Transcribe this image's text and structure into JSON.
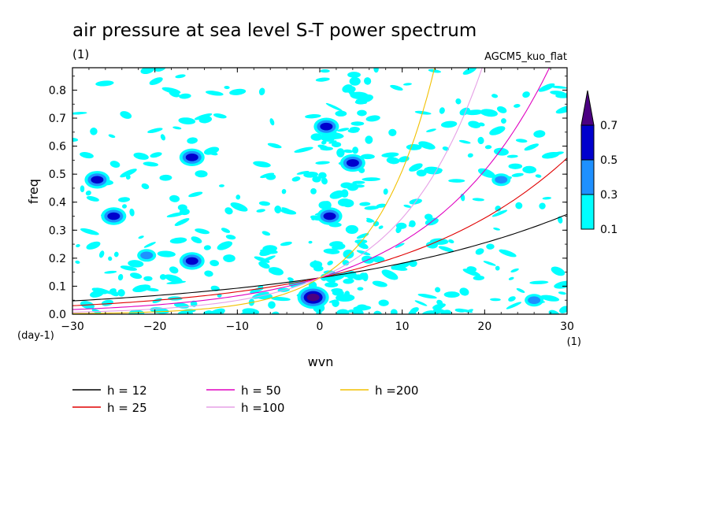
{
  "title": "air pressure at sea level S-T power spectrum",
  "subtitle": "(1)",
  "model": "AGCM5_kuo_flat",
  "chart_data": {
    "type": "heatmap",
    "title": "air pressure at sea level S-T power spectrum",
    "xlabel": "wvn",
    "ylabel": "freq",
    "x_unit": "(1)",
    "y_unit": "(day-1)",
    "xlim": [
      -30,
      30
    ],
    "ylim": [
      0.0,
      0.88
    ],
    "x_ticks": [
      "-30",
      "-20",
      "-10",
      "0",
      "10",
      "20",
      "30"
    ],
    "y_ticks": [
      "0.0",
      "0.1",
      "0.2",
      "0.3",
      "0.4",
      "0.5",
      "0.6",
      "0.7",
      "0.8"
    ],
    "colorbar": {
      "levels": [
        "0.1",
        "0.3",
        "0.5",
        "0.7"
      ],
      "colors": [
        "#00ffff",
        "#1e90ff",
        "#0000cd",
        "#4b0082"
      ]
    },
    "dispersion_curves": [
      {
        "label": "h = 12",
        "color": "#000000",
        "h": 12
      },
      {
        "label": "h = 25",
        "color": "#e00000",
        "h": 25
      },
      {
        "label": "h = 50",
        "color": "#e000c0",
        "h": 50
      },
      {
        "label": "h =100",
        "color": "#e6a0e6",
        "h": 100
      },
      {
        "label": "h =200",
        "color": "#f2c000",
        "h": 200
      }
    ],
    "features": [
      {
        "x": -0.8,
        "y": 0.06,
        "level": 0.7
      },
      {
        "x": 4.0,
        "y": 0.54,
        "level": 0.5
      },
      {
        "x": 1.2,
        "y": 0.35,
        "level": 0.5
      },
      {
        "x": 0.8,
        "y": 0.67,
        "level": 0.5
      },
      {
        "x": -27,
        "y": 0.48,
        "level": 0.5
      },
      {
        "x": -25,
        "y": 0.35,
        "level": 0.5
      },
      {
        "x": -15.5,
        "y": 0.56,
        "level": 0.5
      },
      {
        "x": -15.5,
        "y": 0.19,
        "level": 0.5
      },
      {
        "x": -21,
        "y": 0.21,
        "level": 0.3
      },
      {
        "x": 26,
        "y": 0.05,
        "level": 0.3
      },
      {
        "x": 22,
        "y": 0.48,
        "level": 0.3
      }
    ]
  }
}
